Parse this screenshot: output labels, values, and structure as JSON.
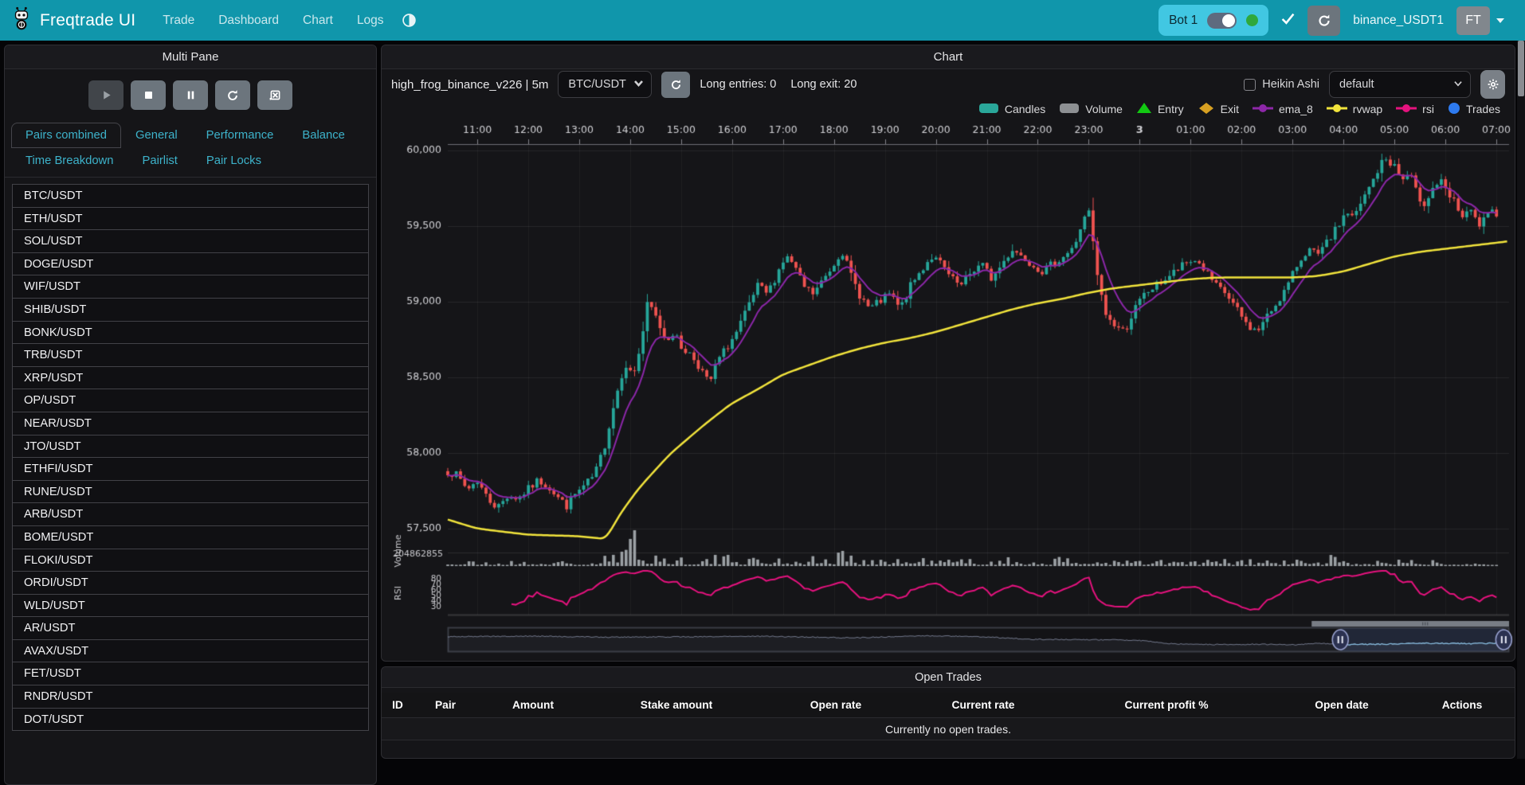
{
  "navbar": {
    "brand": "Freqtrade UI",
    "items": [
      "Trade",
      "Dashboard",
      "Chart",
      "Logs"
    ],
    "bot_label": "Bot 1",
    "bot_online": true,
    "account": "binance_USDT1",
    "avatar": "FT",
    "color": "#1096ab"
  },
  "sidebar": {
    "title": "Multi Pane",
    "controls": [
      {
        "name": "play",
        "disabled": true
      },
      {
        "name": "stop",
        "disabled": false
      },
      {
        "name": "pause",
        "disabled": false
      },
      {
        "name": "refresh",
        "disabled": false
      },
      {
        "name": "clear-chart",
        "disabled": false
      }
    ],
    "tabs": [
      {
        "label": "Pairs combined",
        "active": true
      },
      {
        "label": "General",
        "active": false
      },
      {
        "label": "Performance",
        "active": false
      },
      {
        "label": "Balance",
        "active": false
      },
      {
        "label": "Time Breakdown",
        "active": false
      },
      {
        "label": "Pairlist",
        "active": false
      },
      {
        "label": "Pair Locks",
        "active": false
      }
    ],
    "pairs": [
      "BTC/USDT",
      "ETH/USDT",
      "SOL/USDT",
      "DOGE/USDT",
      "WIF/USDT",
      "SHIB/USDT",
      "BONK/USDT",
      "TRB/USDT",
      "XRP/USDT",
      "OP/USDT",
      "NEAR/USDT",
      "JTO/USDT",
      "ETHFI/USDT",
      "RUNE/USDT",
      "ARB/USDT",
      "BOME/USDT",
      "FLOKI/USDT",
      "ORDI/USDT",
      "WLD/USDT",
      "AR/USDT",
      "AVAX/USDT",
      "FET/USDT",
      "RNDR/USDT",
      "DOT/USDT"
    ]
  },
  "chart": {
    "title": "Chart",
    "strategy": "high_frog_binance_v226",
    "separator": "|",
    "timeframe": "5m",
    "pair": "BTC/USDT",
    "long_entries": "Long entries: 0",
    "long_exit": "Long exit: 20",
    "heikin_ashi_label": "Heikin Ashi",
    "plot_config": "default",
    "legend": [
      {
        "label": "Candles",
        "shape": "rect",
        "color": "#2aa79a"
      },
      {
        "label": "Volume",
        "shape": "rect",
        "color": "#8d9093"
      },
      {
        "label": "Entry",
        "shape": "triangle",
        "color": "#12c912"
      },
      {
        "label": "Exit",
        "shape": "diamond",
        "color": "#d7a022"
      },
      {
        "label": "ema_8",
        "shape": "linedot",
        "color": "#8d27a8"
      },
      {
        "label": "rvwap",
        "shape": "linedot",
        "color": "#f2e43c"
      },
      {
        "label": "rsi",
        "shape": "linedot",
        "color": "#e5127e"
      },
      {
        "label": "Trades",
        "shape": "circle",
        "color": "#2e7bf0"
      }
    ]
  },
  "chart_data": {
    "type": "candlestick",
    "pair": "BTC/USDT",
    "timeframe_minutes": 5,
    "time_domain": [
      10.42,
      31.25
    ],
    "candles_end": 31.08,
    "x_hour_ticks": [
      {
        "t": 11,
        "label": "11:00"
      },
      {
        "t": 12,
        "label": "12:00"
      },
      {
        "t": 13,
        "label": "13:00"
      },
      {
        "t": 14,
        "label": "14:00"
      },
      {
        "t": 15,
        "label": "15:00"
      },
      {
        "t": 16,
        "label": "16:00"
      },
      {
        "t": 17,
        "label": "17:00"
      },
      {
        "t": 18,
        "label": "18:00"
      },
      {
        "t": 19,
        "label": "19:00"
      },
      {
        "t": 20,
        "label": "20:00"
      },
      {
        "t": 21,
        "label": "21:00"
      },
      {
        "t": 22,
        "label": "22:00"
      },
      {
        "t": 23,
        "label": "23:00"
      },
      {
        "t": 24,
        "label": "3",
        "bold": true
      },
      {
        "t": 25,
        "label": "01:00"
      },
      {
        "t": 26,
        "label": "02:00"
      },
      {
        "t": 27,
        "label": "03:00"
      },
      {
        "t": 28,
        "label": "04:00"
      },
      {
        "t": 29,
        "label": "05:00"
      },
      {
        "t": 30,
        "label": "06:00"
      },
      {
        "t": 31,
        "label": "07:00"
      }
    ],
    "y_ticks": [
      {
        "v": 60000,
        "label": "60,000"
      },
      {
        "v": 59500,
        "label": "59,500"
      },
      {
        "v": 59000,
        "label": "59,000"
      },
      {
        "v": 58500,
        "label": "58,500"
      },
      {
        "v": 58000,
        "label": "58,000"
      },
      {
        "v": 57500,
        "label": "57,500"
      }
    ],
    "ylim": [
      57350,
      60150
    ],
    "volume_axis_label": "204862855",
    "volume_pane_label": "Volume",
    "rsi_pane_label": "RSI",
    "rsi_ticks": [
      80,
      70,
      60,
      50,
      40,
      30
    ],
    "price_keypoints": [
      [
        10.42,
        57880
      ],
      [
        10.6,
        57850
      ],
      [
        10.8,
        57760
      ],
      [
        11.0,
        57820
      ],
      [
        11.2,
        57700
      ],
      [
        11.4,
        57640
      ],
      [
        11.6,
        57720
      ],
      [
        11.8,
        57700
      ],
      [
        12.0,
        57760
      ],
      [
        12.2,
        57820
      ],
      [
        12.4,
        57780
      ],
      [
        12.6,
        57700
      ],
      [
        12.75,
        57650
      ],
      [
        12.9,
        57720
      ],
      [
        13.1,
        57780
      ],
      [
        13.3,
        57850
      ],
      [
        13.5,
        58050
      ],
      [
        13.7,
        58350
      ],
      [
        13.9,
        58600
      ],
      [
        14.05,
        58500
      ],
      [
        14.2,
        58700
      ],
      [
        14.35,
        59000
      ],
      [
        14.5,
        58900
      ],
      [
        14.7,
        58750
      ],
      [
        14.85,
        58800
      ],
      [
        15.0,
        58700
      ],
      [
        15.2,
        58650
      ],
      [
        15.4,
        58550
      ],
      [
        15.55,
        58450
      ],
      [
        15.7,
        58600
      ],
      [
        15.9,
        58700
      ],
      [
        16.1,
        58800
      ],
      [
        16.3,
        58950
      ],
      [
        16.5,
        59100
      ],
      [
        16.7,
        59050
      ],
      [
        16.9,
        59200
      ],
      [
        17.05,
        59300
      ],
      [
        17.2,
        59250
      ],
      [
        17.4,
        59100
      ],
      [
        17.6,
        59050
      ],
      [
        17.8,
        59150
      ],
      [
        18.0,
        59250
      ],
      [
        18.15,
        59350
      ],
      [
        18.3,
        59200
      ],
      [
        18.5,
        59050
      ],
      [
        18.7,
        58950
      ],
      [
        18.9,
        59000
      ],
      [
        19.1,
        59050
      ],
      [
        19.3,
        58950
      ],
      [
        19.5,
        59100
      ],
      [
        19.7,
        59200
      ],
      [
        19.9,
        59300
      ],
      [
        20.1,
        59250
      ],
      [
        20.3,
        59150
      ],
      [
        20.5,
        59100
      ],
      [
        20.7,
        59200
      ],
      [
        20.9,
        59250
      ],
      [
        21.1,
        59150
      ],
      [
        21.3,
        59250
      ],
      [
        21.5,
        59350
      ],
      [
        21.7,
        59300
      ],
      [
        21.9,
        59250
      ],
      [
        22.1,
        59200
      ],
      [
        22.3,
        59250
      ],
      [
        22.5,
        59300
      ],
      [
        22.7,
        59350
      ],
      [
        22.85,
        59500
      ],
      [
        23.0,
        59600
      ],
      [
        23.1,
        59350
      ],
      [
        23.2,
        59100
      ],
      [
        23.35,
        58900
      ],
      [
        23.5,
        58850
      ],
      [
        23.7,
        58800
      ],
      [
        23.9,
        58950
      ],
      [
        24.1,
        59050
      ],
      [
        24.3,
        59100
      ],
      [
        24.5,
        59150
      ],
      [
        24.7,
        59200
      ],
      [
        24.9,
        59250
      ],
      [
        25.1,
        59280
      ],
      [
        25.3,
        59200
      ],
      [
        25.5,
        59100
      ],
      [
        25.7,
        59050
      ],
      [
        25.9,
        58950
      ],
      [
        26.1,
        58850
      ],
      [
        26.3,
        58800
      ],
      [
        26.5,
        58900
      ],
      [
        26.7,
        59000
      ],
      [
        26.9,
        59100
      ],
      [
        27.1,
        59250
      ],
      [
        27.3,
        59350
      ],
      [
        27.5,
        59300
      ],
      [
        27.7,
        59400
      ],
      [
        27.9,
        59500
      ],
      [
        28.05,
        59600
      ],
      [
        28.2,
        59550
      ],
      [
        28.35,
        59650
      ],
      [
        28.5,
        59750
      ],
      [
        28.65,
        59850
      ],
      [
        28.8,
        59950
      ],
      [
        29.0,
        59900
      ],
      [
        29.15,
        59800
      ],
      [
        29.3,
        59850
      ],
      [
        29.45,
        59700
      ],
      [
        29.6,
        59650
      ],
      [
        29.75,
        59750
      ],
      [
        29.9,
        59800
      ],
      [
        30.05,
        59700
      ],
      [
        30.2,
        59650
      ],
      [
        30.35,
        59550
      ],
      [
        30.5,
        59600
      ],
      [
        30.65,
        59500
      ],
      [
        30.8,
        59550
      ],
      [
        30.95,
        59600
      ],
      [
        31.08,
        59580
      ]
    ],
    "rvwap_keypoints": [
      [
        10.42,
        57560
      ],
      [
        11.0,
        57500
      ],
      [
        12.0,
        57460
      ],
      [
        13.0,
        57450
      ],
      [
        13.55,
        57430
      ],
      [
        13.8,
        57600
      ],
      [
        14.2,
        57780
      ],
      [
        14.8,
        58000
      ],
      [
        15.5,
        58200
      ],
      [
        16.0,
        58330
      ],
      [
        16.5,
        58420
      ],
      [
        17.0,
        58520
      ],
      [
        17.5,
        58580
      ],
      [
        18.0,
        58640
      ],
      [
        18.5,
        58690
      ],
      [
        19.0,
        58730
      ],
      [
        19.5,
        58760
      ],
      [
        20.0,
        58800
      ],
      [
        20.5,
        58850
      ],
      [
        21.0,
        58900
      ],
      [
        21.5,
        58950
      ],
      [
        22.0,
        58990
      ],
      [
        22.5,
        59020
      ],
      [
        23.0,
        59060
      ],
      [
        23.5,
        59090
      ],
      [
        24.0,
        59110
      ],
      [
        24.5,
        59130
      ],
      [
        25.0,
        59150
      ],
      [
        25.5,
        59160
      ],
      [
        26.0,
        59160
      ],
      [
        26.5,
        59160
      ],
      [
        27.0,
        59160
      ],
      [
        27.5,
        59170
      ],
      [
        28.0,
        59200
      ],
      [
        28.5,
        59250
      ],
      [
        29.0,
        59300
      ],
      [
        29.5,
        59330
      ],
      [
        30.0,
        59350
      ],
      [
        30.5,
        59370
      ],
      [
        31.25,
        59400
      ]
    ],
    "volume_spikes": {
      "43": 2.2,
      "44": 4.2,
      "45": 2.6,
      "67": 1.9,
      "68": 2.1,
      "92": 2.2,
      "93": 1.8,
      "107": 1.6,
      "151": 1.9,
      "152": 1.6,
      "208": 2.3,
      "209": 1.8,
      "222": 1.5
    },
    "navigator": {
      "selection": [
        0.841,
        0.995
      ],
      "path": [
        [
          0,
          0.35
        ],
        [
          0.08,
          0.32
        ],
        [
          0.15,
          0.38
        ],
        [
          0.22,
          0.36
        ],
        [
          0.3,
          0.33
        ],
        [
          0.38,
          0.42
        ],
        [
          0.45,
          0.3
        ],
        [
          0.5,
          0.35
        ],
        [
          0.55,
          0.5
        ],
        [
          0.6,
          0.52
        ],
        [
          0.65,
          0.55
        ],
        [
          0.68,
          0.75
        ],
        [
          0.72,
          0.8
        ],
        [
          0.76,
          0.78
        ],
        [
          0.8,
          0.82
        ],
        [
          0.82,
          0.72
        ],
        [
          0.84,
          0.8
        ],
        [
          0.88,
          0.78
        ],
        [
          0.92,
          0.72
        ],
        [
          0.96,
          0.75
        ],
        [
          1,
          0.7
        ]
      ]
    },
    "colors": {
      "candle_up": "#26A69A",
      "candle_down": "#EF5350",
      "ema_8": "#8B27A8",
      "rvwap": "#F2E43C",
      "rsi": "#E5127E",
      "volume": "#9BA0A4",
      "entry": "#12C912",
      "exit": "#D7A022",
      "trades": "#2E7BF0"
    },
    "legend_entries": [
      "Candles",
      "Volume",
      "Entry",
      "Exit",
      "ema_8",
      "rvwap",
      "rsi",
      "Trades"
    ],
    "grid": true,
    "legend_position": "top-right"
  },
  "open_trades": {
    "title": "Open Trades",
    "columns": [
      "ID",
      "Pair",
      "Amount",
      "Stake amount",
      "Open rate",
      "Current rate",
      "Current profit %",
      "Open date",
      "Actions"
    ],
    "empty_message": "Currently no open trades."
  }
}
